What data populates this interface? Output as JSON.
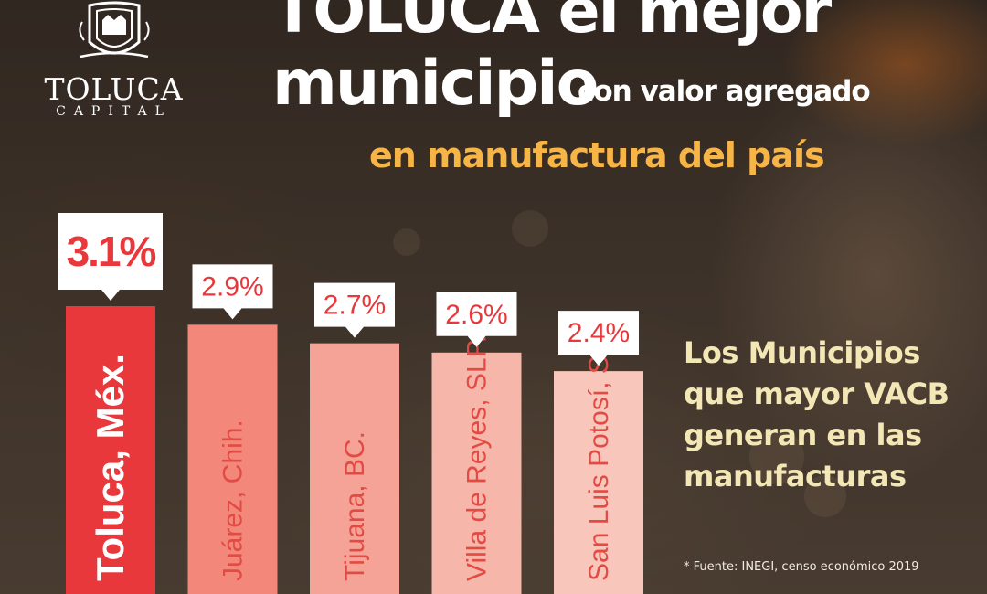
{
  "logo": {
    "name": "TOLUCA",
    "sub": "CAPITAL",
    "crest": "toluca-coat-of-arms"
  },
  "headline": {
    "line1": "TOLUCA el mejor",
    "line2": "municipio",
    "line3": "con valor agregado",
    "line4": "en manufactura del país"
  },
  "chart_data": {
    "type": "bar",
    "categories": [
      "Toluca, Méx.",
      "Juárez, Chih.",
      "Tijuana,  BC.",
      "Villa de Reyes, SLP.",
      "San Luis Potosí, SLP."
    ],
    "values": [
      3.1,
      2.9,
      2.7,
      2.6,
      2.4
    ],
    "value_labels": [
      "3.1%",
      "2.9%",
      "2.7%",
      "2.6%",
      "2.4%"
    ],
    "title": "",
    "xlabel": "",
    "ylabel": "",
    "grid": false,
    "legend": "none",
    "highlight_index": 0,
    "colors": {
      "highlight_bar": "#e8383b",
      "bars": [
        "#e8383b",
        "#f3877a",
        "#f6a397",
        "#f7b6aa",
        "#f9c6bb"
      ],
      "highlight_label": "#ffffff",
      "labels": "#e14b44",
      "callout_bg": "#ffffff",
      "value_text": "#e8383b"
    }
  },
  "sidebar": {
    "lines": [
      "Los Municipios",
      "que mayor VACB",
      "generan en las",
      "manufacturas"
    ]
  },
  "source": "* Fuente: INEGI, censo económico 2019"
}
